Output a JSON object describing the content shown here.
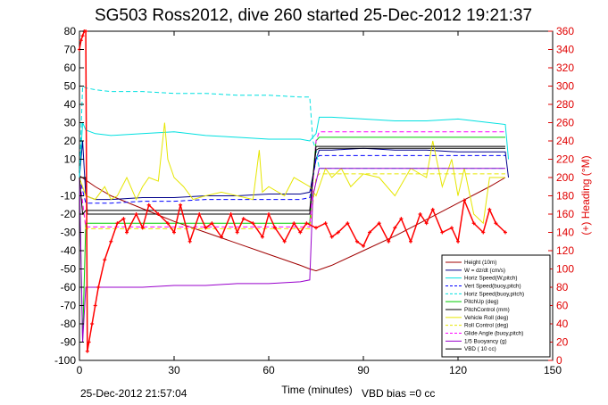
{
  "chart_data": {
    "type": "line",
    "title": "SG503 Ross2012, dive 260 started 25-Dec-2012 19:21:37",
    "xlabel": "Time (minutes)",
    "ylabel_right": "(+) Heading (°M)",
    "xlim": [
      0,
      150
    ],
    "ylim_left": [
      -100,
      80
    ],
    "ylim_right": [
      0,
      360
    ],
    "x_ticks": [
      0,
      30,
      60,
      90,
      120,
      150
    ],
    "y_ticks_left": [
      80,
      70,
      60,
      50,
      40,
      30,
      20,
      10,
      0,
      -10,
      -20,
      -30,
      -40,
      -50,
      -60,
      -70,
      -80,
      -90,
      -100
    ],
    "y_ticks_right": [
      360,
      340,
      320,
      300,
      280,
      260,
      240,
      220,
      200,
      180,
      160,
      140,
      120,
      100,
      80,
      60,
      40,
      20,
      0
    ],
    "footer_left": "25-Dec-2012 21:57:04",
    "footer_center": "VBD bias =0 cc",
    "legend_position": "bottom-right",
    "series": [
      {
        "name": "Height (10m)",
        "color": "#a00000",
        "axis": "left",
        "x": [
          0,
          5,
          10,
          20,
          30,
          40,
          50,
          60,
          70,
          73,
          75,
          80,
          90,
          100,
          110,
          120,
          130,
          135
        ],
        "y": [
          1,
          -5,
          -10,
          -17,
          -24,
          -30,
          -36,
          -42,
          -48,
          -50,
          -51,
          -48,
          -40,
          -32,
          -23,
          -14,
          -5,
          0
        ]
      },
      {
        "name": "W = dz/dt (cm/s)",
        "color": "#00008b",
        "axis": "left",
        "x": [
          0,
          1,
          2,
          5,
          10,
          20,
          30,
          40,
          50,
          60,
          70,
          73,
          75,
          76,
          80,
          90,
          100,
          110,
          120,
          130,
          135,
          136
        ],
        "y": [
          0,
          20,
          -10,
          -12,
          -12,
          -11,
          -11,
          -10,
          -10,
          -9,
          -9,
          -8,
          10,
          15,
          15,
          16,
          15,
          15,
          14,
          14,
          14,
          0
        ]
      },
      {
        "name": "Horiz Speed(W,pitch)",
        "color": "#00e0e0",
        "axis": "left",
        "x": [
          0,
          1,
          2,
          5,
          10,
          20,
          30,
          40,
          50,
          60,
          70,
          73,
          75,
          76,
          80,
          90,
          100,
          110,
          120,
          130,
          135,
          136
        ],
        "y": [
          0,
          30,
          26,
          24,
          23,
          24,
          25,
          23,
          22,
          21,
          21,
          20,
          24,
          33,
          33,
          32,
          31,
          31,
          32,
          30,
          29,
          10
        ]
      },
      {
        "name": "Vert Speed(buoy,pitch)",
        "color": "#0000ff",
        "axis": "left",
        "dash": "5,3",
        "x": [
          0,
          2,
          5,
          10,
          20,
          30,
          40,
          50,
          60,
          70,
          73,
          75,
          76,
          80,
          90,
          100,
          110,
          120,
          130,
          135
        ],
        "y": [
          0,
          -14,
          -14,
          -14,
          -13,
          -13,
          -12,
          -12,
          -12,
          -12,
          -11,
          10,
          12,
          12,
          12,
          12,
          12,
          12,
          12,
          12
        ]
      },
      {
        "name": "Horiz Speed(buoy,pitch)",
        "color": "#00e0e0",
        "axis": "left",
        "dash": "5,3",
        "x": [
          0,
          1,
          2,
          5,
          10,
          20,
          30,
          40,
          50,
          60,
          70,
          73,
          74,
          75,
          76,
          80,
          90,
          100,
          110,
          120,
          130,
          135
        ],
        "y": [
          0,
          50,
          49,
          48,
          47,
          47,
          46,
          46,
          45,
          45,
          44,
          44,
          20,
          15,
          5,
          5,
          5,
          5,
          5,
          5,
          5,
          5
        ]
      },
      {
        "name": "PitchUp (deg)",
        "color": "#00cc00",
        "axis": "left",
        "x": [
          0,
          1,
          2,
          5,
          10,
          20,
          30,
          40,
          50,
          60,
          70,
          73,
          74,
          75,
          76,
          80,
          90,
          100,
          110,
          120,
          130,
          135
        ],
        "y": [
          0,
          -90,
          -25,
          -25,
          -25,
          -25,
          -25,
          -25,
          -25,
          -25,
          -25,
          -25,
          0,
          20,
          22,
          22,
          22,
          22,
          22,
          22,
          22,
          22
        ]
      },
      {
        "name": "PitchControl (mm)",
        "color": "#000000",
        "axis": "left",
        "x": [
          0,
          2,
          2.5,
          5,
          10,
          20,
          30,
          40,
          50,
          60,
          70,
          73,
          74,
          75,
          76,
          80,
          90,
          100,
          110,
          120,
          130,
          135
        ],
        "y": [
          0,
          0,
          -20,
          -20,
          -20,
          -20,
          -20,
          -20,
          -20,
          -20,
          -20,
          -20,
          0,
          15,
          16,
          16,
          16,
          16,
          16,
          16,
          16,
          16
        ]
      },
      {
        "name": "Vehicle Roll (deg)",
        "color": "#e6e600",
        "axis": "left",
        "x": [
          0,
          2,
          5,
          8,
          10,
          12,
          15,
          18,
          20,
          22,
          25,
          27,
          28,
          30,
          33,
          36,
          40,
          45,
          50,
          55,
          57,
          58,
          60,
          65,
          68,
          70,
          73,
          75,
          78,
          80,
          83,
          86,
          90,
          95,
          100,
          105,
          110,
          112,
          115,
          118,
          120,
          122,
          125,
          128,
          130,
          135
        ],
        "y": [
          0,
          -10,
          -12,
          -5,
          -12,
          -10,
          0,
          -12,
          -5,
          0,
          -2,
          30,
          10,
          0,
          -5,
          -12,
          -10,
          -8,
          -10,
          -12,
          15,
          -8,
          -5,
          -10,
          0,
          -2,
          -5,
          -10,
          5,
          0,
          5,
          -5,
          2,
          0,
          -10,
          5,
          0,
          20,
          -5,
          10,
          -10,
          5,
          -20,
          -25,
          0,
          0
        ]
      },
      {
        "name": "Roll Control (deg)",
        "color": "#e6e600",
        "axis": "left",
        "dash": "5,3",
        "x": [
          0,
          2,
          5,
          10,
          20,
          30,
          40,
          50,
          60,
          70,
          73,
          75,
          76,
          80,
          90,
          100,
          110,
          120,
          130,
          135
        ],
        "y": [
          0,
          -28,
          -28,
          -28,
          -28,
          -28,
          -28,
          -28,
          -28,
          -28,
          -28,
          0,
          2,
          2,
          2,
          2,
          2,
          2,
          2,
          2
        ]
      },
      {
        "name": "Glide Angle (buoy,pitch)",
        "color": "#ff00ff",
        "axis": "left",
        "dash": "5,3",
        "x": [
          0,
          2,
          5,
          10,
          20,
          30,
          40,
          50,
          60,
          70,
          73,
          75,
          76,
          80,
          90,
          100,
          110,
          120,
          130,
          135
        ],
        "y": [
          0,
          -27,
          -27,
          -27,
          -27,
          -27,
          -27,
          -27,
          -27,
          -27,
          -27,
          20,
          25,
          25,
          25,
          25,
          25,
          25,
          25,
          25
        ]
      },
      {
        "name": "1/5 Buoyancy (g)",
        "color": "#9900cc",
        "axis": "left",
        "x": [
          0,
          1,
          2,
          10,
          20,
          30,
          40,
          50,
          60,
          70,
          73,
          74,
          76,
          80,
          90,
          100,
          110,
          120,
          130,
          135
        ],
        "y": [
          0,
          -90,
          -60,
          -60,
          -60,
          -59,
          -59,
          -58,
          -58,
          -57,
          -56,
          -10,
          5,
          5,
          5,
          5,
          5,
          5,
          5,
          5
        ]
      },
      {
        "name": "VBD ( 10 cc)",
        "color": "#000000",
        "axis": "left",
        "x": [
          0,
          1,
          2,
          10,
          20,
          30,
          40,
          50,
          60,
          70,
          73,
          74,
          75,
          76,
          80,
          90,
          100,
          110,
          120,
          130,
          135
        ],
        "y": [
          0,
          -20,
          -18,
          -18,
          -18,
          -18,
          -18,
          -18,
          -18,
          -18,
          -18,
          0,
          17,
          17,
          17,
          17,
          17,
          17,
          17,
          17,
          17
        ]
      },
      {
        "name": "(+) Heading",
        "color": "#ff0000",
        "axis": "right",
        "marker": "plus",
        "legend": false,
        "x": [
          0,
          0.5,
          1,
          1.5,
          2,
          2.5,
          3,
          4,
          5,
          6,
          8,
          10,
          12,
          14,
          15,
          18,
          20,
          22,
          25,
          28,
          30,
          32,
          35,
          38,
          40,
          42,
          45,
          48,
          50,
          52,
          55,
          58,
          60,
          62,
          65,
          68,
          70,
          72,
          75,
          78,
          80,
          82,
          85,
          88,
          90,
          92,
          95,
          98,
          100,
          102,
          105,
          108,
          110,
          112,
          115,
          118,
          120,
          122,
          125,
          128,
          130,
          132,
          135
        ],
        "y": [
          340,
          350,
          355,
          360,
          360,
          10,
          20,
          40,
          60,
          80,
          110,
          130,
          150,
          155,
          140,
          160,
          145,
          170,
          160,
          150,
          140,
          170,
          130,
          160,
          145,
          150,
          135,
          160,
          140,
          155,
          150,
          135,
          160,
          145,
          130,
          150,
          140,
          150,
          145,
          150,
          135,
          140,
          150,
          130,
          125,
          140,
          150,
          130,
          145,
          155,
          130,
          160,
          150,
          165,
          140,
          145,
          130,
          175,
          150,
          140,
          165,
          150,
          140
        ]
      }
    ]
  }
}
